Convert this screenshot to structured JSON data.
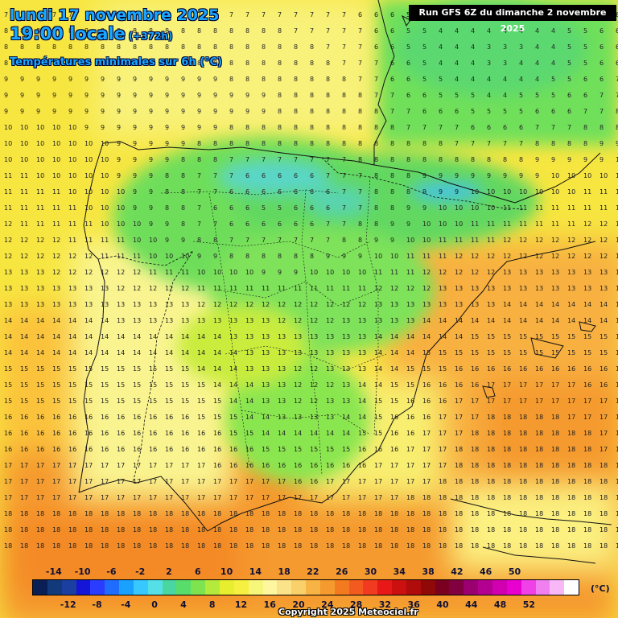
{
  "header": {
    "date": "lundi 17 novembre 2025",
    "time": "19:00 locale",
    "lead": "(+372h)",
    "subtitle": "Températures minimales sur 6h (°C)"
  },
  "run_label": "Run GFS 6Z du dimanche 2 novembre 2025",
  "copyright": "Copyright 2025 Meteociel.fr",
  "legend": {
    "unit": "(°C)",
    "top_labels": [
      "-14",
      "-10",
      "-6",
      "-2",
      "2",
      "6",
      "10",
      "14",
      "18",
      "22",
      "26",
      "30",
      "34",
      "38",
      "42",
      "46",
      "50"
    ],
    "bottom_labels": [
      "-12",
      "-8",
      "-4",
      "0",
      "4",
      "8",
      "12",
      "16",
      "20",
      "24",
      "28",
      "32",
      "36",
      "40",
      "44",
      "48",
      "52"
    ],
    "colors": [
      "#0a1f55",
      "#123a7a",
      "#1b3fa0",
      "#1515d8",
      "#2a3cff",
      "#1f6dff",
      "#1aa0ff",
      "#36c8ff",
      "#55e0e8",
      "#4ad6a0",
      "#58dc6a",
      "#7de34f",
      "#b4ea3c",
      "#e6ee2e",
      "#f6f040",
      "#f6f67a",
      "#fff7a0",
      "#fbe38a",
      "#f9d06a",
      "#f7b445",
      "#f59a2e",
      "#f47a20",
      "#f35a20",
      "#f23a20",
      "#e81818",
      "#cc1010",
      "#b00c0c",
      "#900808",
      "#7a0020",
      "#800040",
      "#9a0070",
      "#b40090",
      "#d000b0",
      "#e800d0",
      "#f040e8",
      "#f080f0",
      "#f8b8f8",
      "#ffffff"
    ]
  }
}
